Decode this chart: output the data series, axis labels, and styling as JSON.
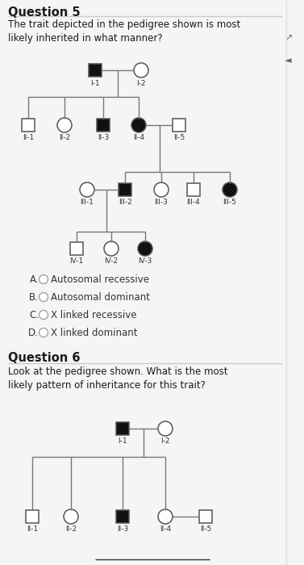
{
  "title1": "Question 5",
  "question1": "The trait depicted in the pedigree shown is most\nlikely inherited in what manner?",
  "title2": "Question 6",
  "question2": "Look at the pedigree shown. What is the most\nlikely pattern of inheritance for this trait?",
  "options": [
    "A.",
    "B.",
    "C.",
    "D."
  ],
  "option_texts": [
    "Autosomal recessive",
    "Autosomal dominant",
    "X linked recessive",
    "X linked dominant"
  ],
  "bg_color": "#f5f5f5",
  "text_color": "#1a1a1a",
  "line_color": "#777777",
  "shape_fill_black": "#111111",
  "shape_fill_white": "#ffffff",
  "shape_edge": "#555555"
}
